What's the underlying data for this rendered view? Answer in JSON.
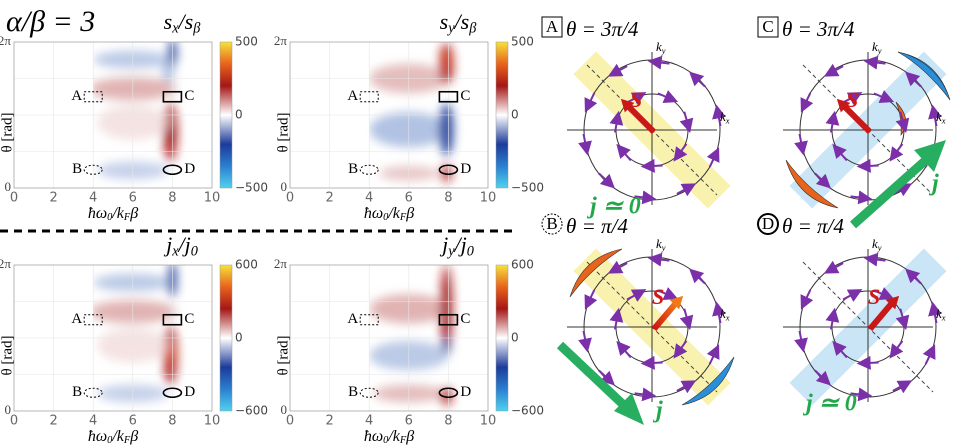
{
  "header": {
    "title": "α/β = 3"
  },
  "heatmaps": [
    {
      "title": [
        "s",
        "x",
        "/s",
        "β"
      ],
      "colorbar": [
        "500",
        "0",
        "−500"
      ]
    },
    {
      "title": [
        "s",
        "y",
        "/s",
        "β"
      ],
      "colorbar": [
        "500",
        "0",
        "−500"
      ]
    },
    {
      "title": [
        "j",
        "x",
        "/j",
        "0"
      ],
      "colorbar": [
        "600",
        "0",
        "−600"
      ]
    },
    {
      "title": [
        "j",
        "y",
        "/j",
        "0"
      ],
      "colorbar": [
        "600",
        "0",
        "−600"
      ]
    }
  ],
  "heatmap_axes": {
    "x_label": [
      "ħω",
      "0",
      "/k",
      "F",
      "β"
    ],
    "y_label": "θ [rad]",
    "x_ticks": [
      "0",
      "2",
      "4",
      "6",
      "8",
      "10"
    ],
    "y_ticks": [
      "2π",
      "0"
    ],
    "markers": [
      "A",
      "B",
      "C",
      "D"
    ]
  },
  "diagrams": [
    {
      "tag": "A",
      "theta": "θ = 3π/4",
      "spin": "S",
      "current": "j ≃ 0"
    },
    {
      "tag": "C",
      "theta": "θ = 3π/4",
      "spin": "S",
      "current": "j"
    },
    {
      "tag": "B",
      "theta": "θ = π/4",
      "spin": "S",
      "current": "j"
    },
    {
      "tag": "D",
      "theta": "θ = π/4",
      "spin": "S",
      "current": "j ≃ 0"
    }
  ],
  "k_axes": {
    "kx": [
      "k",
      "x"
    ],
    "ky": [
      "k",
      "y"
    ]
  }
}
